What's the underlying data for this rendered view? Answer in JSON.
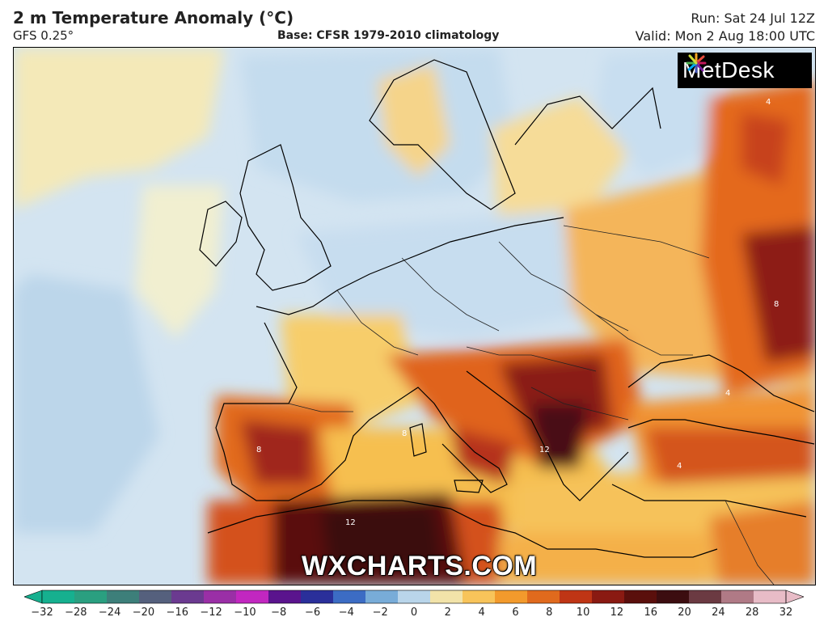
{
  "header": {
    "title": "2 m Temperature Anomaly (°C)",
    "model": "GFS 0.25°",
    "base": "Base: CFSR 1979-2010 climatology",
    "run": "Run: Sat 24 Jul 12Z",
    "valid": "Valid: Mon 2 Aug 18:00 UTC"
  },
  "logo": {
    "text": "MetDesk"
  },
  "watermark": "WXCHARTS.COM",
  "contour_labels": [
    "4",
    "8",
    "12"
  ],
  "colorbar": {
    "ticks": [
      "−32",
      "−28",
      "−24",
      "−20",
      "−16",
      "−12",
      "−10",
      "−8",
      "−6",
      "−4",
      "−2",
      "0",
      "2",
      "4",
      "6",
      "8",
      "10",
      "12",
      "16",
      "20",
      "24",
      "28",
      "32"
    ],
    "colors": [
      "#16b08f",
      "#2a9f80",
      "#3d7f7a",
      "#55607d",
      "#6b3a90",
      "#9a2fa6",
      "#c227c0",
      "#5a148d",
      "#2a2f9a",
      "#3c6cc4",
      "#78acd8",
      "#b9d5ea",
      "#f2e3a9",
      "#f8c45a",
      "#f39a2c",
      "#e06a1d",
      "#bf3515",
      "#8a1a12",
      "#5a0f0c",
      "#3c0d10",
      "#6b3a42",
      "#b07a86",
      "#e8bcc7"
    ]
  },
  "colors": {
    "ocean_cool": "#d6e6f2",
    "neutral": "#f3ecc8",
    "warm": "#f7c15a",
    "hot": "#e2631b",
    "very_hot": "#8a1a12",
    "extreme": "#3c0d10"
  }
}
